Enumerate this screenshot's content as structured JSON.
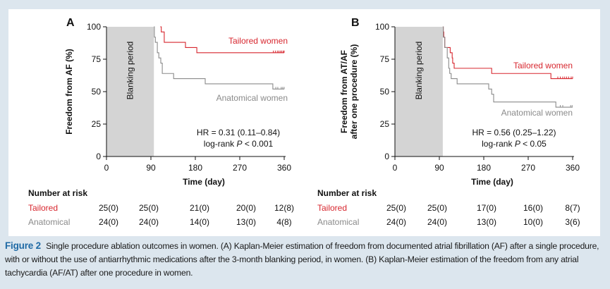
{
  "colors": {
    "tailored": "#d7262e",
    "anatomical": "#8a8a8a",
    "blanking_fill": "#d4d4d4",
    "caption_label": "#1f6aa5",
    "background": "#dce6ee"
  },
  "chart_data": [
    {
      "type": "line",
      "subtype": "kaplan-meier-step",
      "panel": "A",
      "title": "",
      "xlabel": "Time (day)",
      "ylabel": "Freedom from AF (%)",
      "xlim": [
        0,
        360
      ],
      "ylim": [
        0,
        100
      ],
      "xticks": [
        "0",
        "90",
        "180",
        "270",
        "360"
      ],
      "yticks": [
        "0",
        "25",
        "50",
        "75",
        "100"
      ],
      "grid": false,
      "shaded_region": {
        "label": "Blanking period",
        "x": [
          0,
          96
        ]
      },
      "annotations": [
        "HR = 0.31 (0.11–0.84)",
        "log-rank P < 0.001"
      ],
      "series": [
        {
          "name": "Tailored women",
          "key": "tailored",
          "x": [
            109,
            111,
            117,
            160,
            183,
            360
          ],
          "y": [
            100,
            96,
            88,
            84,
            80,
            80
          ],
          "censor_x": [
            338,
            342,
            346,
            349,
            352,
            355,
            358,
            360
          ]
        },
        {
          "name": "Anatomical women",
          "key": "anatomical",
          "x": [
            96,
            97,
            99,
            103,
            106,
            110,
            113,
            136,
            200,
            337,
            360
          ],
          "y": [
            100,
            92,
            88,
            80,
            76,
            72,
            64,
            60,
            56,
            52,
            52
          ],
          "censor_x": [
            343,
            347,
            354,
            357,
            360
          ]
        }
      ],
      "number_at_risk": {
        "header": "Number at risk",
        "times": [
          "0",
          "90",
          "180",
          "270",
          "360"
        ],
        "rows": [
          {
            "label": "Tailored",
            "key": "tailored",
            "values": [
              "25(0)",
              "25(0)",
              "21(0)",
              "20(0)",
              "12(8)"
            ]
          },
          {
            "label": "Anatomical",
            "key": "anatomical",
            "values": [
              "24(0)",
              "24(0)",
              "14(0)",
              "13(0)",
              "4(8)"
            ]
          }
        ]
      }
    },
    {
      "type": "line",
      "subtype": "kaplan-meier-step",
      "panel": "B",
      "title": "",
      "xlabel": "Time (day)",
      "ylabel": "Freedom from AT/AF after one procedure (%)",
      "ylabel_lines": [
        "Freedom from AT/AF",
        "after one procedure (%)"
      ],
      "xlim": [
        0,
        360
      ],
      "ylim": [
        0,
        100
      ],
      "xticks": [
        "0",
        "90",
        "180",
        "270",
        "360"
      ],
      "yticks": [
        "0",
        "25",
        "50",
        "75",
        "100"
      ],
      "grid": false,
      "shaded_region": {
        "label": "Blanking period",
        "x": [
          0,
          97
        ]
      },
      "annotations": [
        "HR = 0.56 (0.25–1.22)",
        "log-rank P < 0.05"
      ],
      "series": [
        {
          "name": "Tailored women",
          "key": "tailored",
          "x": [
            97,
            98,
            99,
            101,
            110,
            112,
            116,
            117,
            120,
            196,
            316,
            360
          ],
          "y": [
            100,
            96,
            92,
            84,
            84,
            80,
            76,
            72,
            68,
            64,
            60,
            60
          ],
          "censor_x": [
            330,
            335,
            340,
            344,
            348,
            352,
            357,
            360
          ]
        },
        {
          "name": "Anatomical women",
          "key": "anatomical",
          "x": [
            97,
            98,
            101,
            106,
            109,
            111,
            114,
            126,
            190,
            196,
            200,
            326,
            360
          ],
          "y": [
            100,
            92,
            84,
            76,
            68,
            64,
            60,
            56,
            52,
            48,
            42,
            38,
            38
          ],
          "censor_x": [
            335,
            340,
            356,
            359
          ]
        }
      ],
      "number_at_risk": {
        "header": "Number at risk",
        "times": [
          "0",
          "90",
          "180",
          "270",
          "360"
        ],
        "rows": [
          {
            "label": "Tailored",
            "key": "tailored",
            "values": [
              "25(0)",
              "25(0)",
              "17(0)",
              "16(0)",
              "8(7)"
            ]
          },
          {
            "label": "Anatomical",
            "key": "anatomical",
            "values": [
              "24(0)",
              "24(0)",
              "13(0)",
              "10(0)",
              "3(6)"
            ]
          }
        ]
      }
    }
  ],
  "caption": {
    "label": "Figure 2",
    "text": "Single procedure ablation outcomes in women. (A) Kaplan-Meier estimation of freedom from documented atrial fibrillation (AF) after a single procedure, with or without the use of antiarrhythmic medications after the 3-month blanking period, in women. (B) Kaplan-Meier estimation of the freedom from any atrial tachycardia (AF/AT) after one procedure in women."
  }
}
